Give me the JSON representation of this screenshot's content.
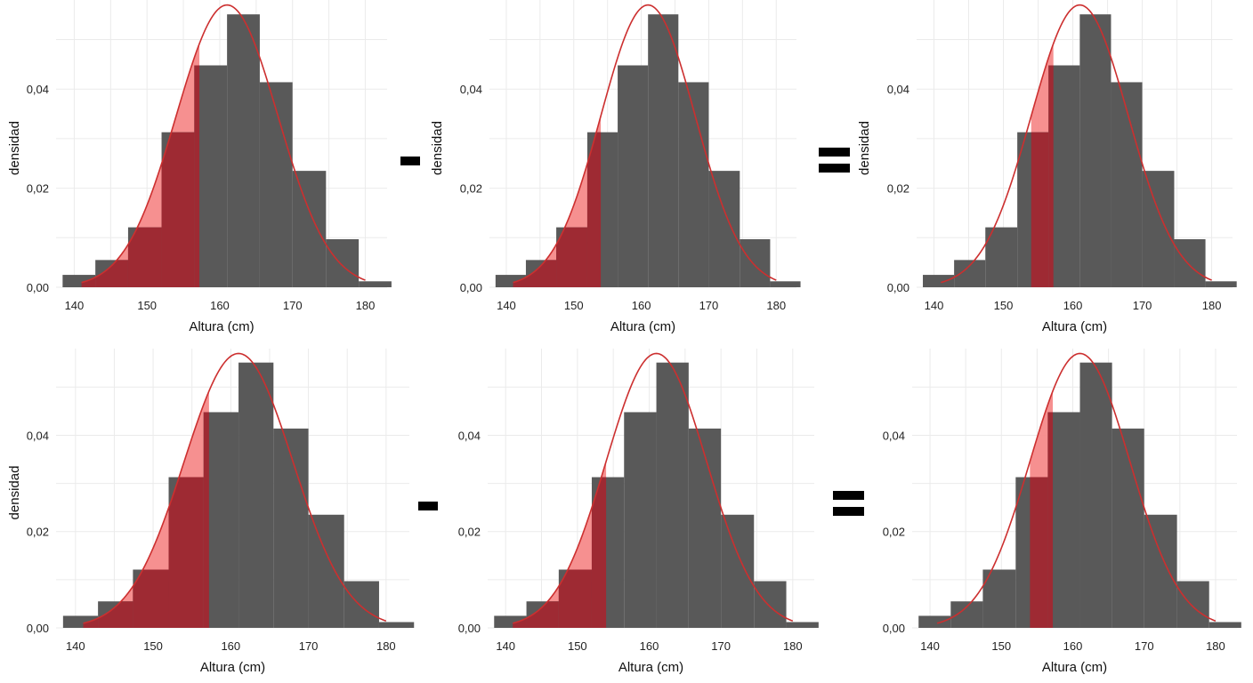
{
  "figure": {
    "operators": [
      "-",
      "=",
      "-",
      "="
    ]
  },
  "chart_data": [
    {
      "type": "bar",
      "title": "",
      "xlabel": "Altura (cm)",
      "ylabel": "densidad",
      "xlim": [
        137.5,
        183
      ],
      "ylim": [
        0,
        0.058
      ],
      "xticks": [
        140,
        150,
        160,
        170,
        180
      ],
      "xtick_labels": [
        "140",
        "150",
        "160",
        "170",
        "180"
      ],
      "yticks": [
        0,
        0.02,
        0.04
      ],
      "ytick_labels": [
        "0,00",
        "0,02",
        "0,04"
      ],
      "grid": true,
      "bins": [
        [
          138.4,
          142.9
        ],
        [
          142.9,
          147.4
        ],
        [
          147.4,
          152.0
        ],
        [
          152.0,
          156.5
        ],
        [
          156.5,
          161.0
        ],
        [
          161.0,
          165.5
        ],
        [
          165.5,
          170.0
        ],
        [
          170.0,
          174.6
        ],
        [
          174.6,
          179.1
        ],
        [
          179.1,
          183.6
        ]
      ],
      "values": [
        0.0025,
        0.0055,
        0.0121,
        0.0313,
        0.0448,
        0.0551,
        0.0414,
        0.0235,
        0.0097,
        0.0012
      ],
      "curve": {
        "type": "normal",
        "mean": 161,
        "sd": 7,
        "range": [
          141,
          180
        ],
        "color": "#cc2f2f"
      },
      "shaded_region": {
        "from": 141,
        "to": 157.2
      }
    },
    {
      "type": "bar",
      "title": "",
      "xlabel": "Altura (cm)",
      "ylabel": "densidad",
      "xlim": [
        137.5,
        183
      ],
      "ylim": [
        0,
        0.058
      ],
      "xticks": [
        140,
        150,
        160,
        170,
        180
      ],
      "xtick_labels": [
        "140",
        "150",
        "160",
        "170",
        "180"
      ],
      "yticks": [
        0,
        0.02,
        0.04
      ],
      "ytick_labels": [
        "0,00",
        "0,02",
        "0,04"
      ],
      "grid": true,
      "bins": [
        [
          138.4,
          142.9
        ],
        [
          142.9,
          147.4
        ],
        [
          147.4,
          152.0
        ],
        [
          152.0,
          156.5
        ],
        [
          156.5,
          161.0
        ],
        [
          161.0,
          165.5
        ],
        [
          165.5,
          170.0
        ],
        [
          170.0,
          174.6
        ],
        [
          174.6,
          179.1
        ],
        [
          179.1,
          183.6
        ]
      ],
      "values": [
        0.0025,
        0.0055,
        0.0121,
        0.0313,
        0.0448,
        0.0551,
        0.0414,
        0.0235,
        0.0097,
        0.0012
      ],
      "curve": {
        "type": "normal",
        "mean": 161,
        "sd": 7,
        "range": [
          141,
          180
        ],
        "color": "#cc2f2f"
      },
      "shaded_region": {
        "from": 141,
        "to": 154
      }
    },
    {
      "type": "bar",
      "title": "",
      "xlabel": "Altura (cm)",
      "ylabel": "densidad",
      "xlim": [
        137.5,
        183
      ],
      "ylim": [
        0,
        0.058
      ],
      "xticks": [
        140,
        150,
        160,
        170,
        180
      ],
      "xtick_labels": [
        "140",
        "150",
        "160",
        "170",
        "180"
      ],
      "yticks": [
        0,
        0.02,
        0.04
      ],
      "ytick_labels": [
        "0,00",
        "0,02",
        "0,04"
      ],
      "grid": true,
      "bins": [
        [
          138.4,
          142.9
        ],
        [
          142.9,
          147.4
        ],
        [
          147.4,
          152.0
        ],
        [
          152.0,
          156.5
        ],
        [
          156.5,
          161.0
        ],
        [
          161.0,
          165.5
        ],
        [
          165.5,
          170.0
        ],
        [
          170.0,
          174.6
        ],
        [
          174.6,
          179.1
        ],
        [
          179.1,
          183.6
        ]
      ],
      "values": [
        0.0025,
        0.0055,
        0.0121,
        0.0313,
        0.0448,
        0.0551,
        0.0414,
        0.0235,
        0.0097,
        0.0012
      ],
      "curve": {
        "type": "normal",
        "mean": 161,
        "sd": 7,
        "range": [
          141,
          180
        ],
        "color": "#cc2f2f"
      },
      "shaded_region": {
        "from": 154,
        "to": 157.2
      }
    },
    {
      "type": "bar",
      "title": "",
      "xlabel": "Altura (cm)",
      "ylabel": "densidad",
      "xlim": [
        137.5,
        183
      ],
      "ylim": [
        0,
        0.058
      ],
      "xticks": [
        140,
        150,
        160,
        170,
        180
      ],
      "xtick_labels": [
        "140",
        "150",
        "160",
        "170",
        "180"
      ],
      "yticks": [
        0,
        0.02,
        0.04
      ],
      "ytick_labels": [
        "0,00",
        "0,02",
        "0,04"
      ],
      "grid": true,
      "bins": [
        [
          138.4,
          142.9
        ],
        [
          142.9,
          147.4
        ],
        [
          147.4,
          152.0
        ],
        [
          152.0,
          156.5
        ],
        [
          156.5,
          161.0
        ],
        [
          161.0,
          165.5
        ],
        [
          165.5,
          170.0
        ],
        [
          170.0,
          174.6
        ],
        [
          174.6,
          179.1
        ],
        [
          179.1,
          183.6
        ]
      ],
      "values": [
        0.0025,
        0.0055,
        0.0121,
        0.0313,
        0.0448,
        0.0551,
        0.0414,
        0.0235,
        0.0097,
        0.0012
      ],
      "curve": {
        "type": "normal",
        "mean": 161,
        "sd": 7,
        "range": [
          141,
          180
        ],
        "color": "#cc2f2f"
      },
      "shaded_region": {
        "from": 141,
        "to": 157.2
      }
    },
    {
      "type": "bar",
      "title": "",
      "xlabel": "Altura (cm)",
      "ylabel": "",
      "xlim": [
        137.5,
        183
      ],
      "ylim": [
        0,
        0.058
      ],
      "xticks": [
        140,
        150,
        160,
        170,
        180
      ],
      "xtick_labels": [
        "140",
        "150",
        "160",
        "170",
        "180"
      ],
      "yticks": [
        0,
        0.02,
        0.04
      ],
      "ytick_labels": [
        "0,00",
        "0,02",
        "0,04"
      ],
      "grid": true,
      "bins": [
        [
          138.4,
          142.9
        ],
        [
          142.9,
          147.4
        ],
        [
          147.4,
          152.0
        ],
        [
          152.0,
          156.5
        ],
        [
          156.5,
          161.0
        ],
        [
          161.0,
          165.5
        ],
        [
          165.5,
          170.0
        ],
        [
          170.0,
          174.6
        ],
        [
          174.6,
          179.1
        ],
        [
          179.1,
          183.6
        ]
      ],
      "values": [
        0.0025,
        0.0055,
        0.0121,
        0.0313,
        0.0448,
        0.0551,
        0.0414,
        0.0235,
        0.0097,
        0.0012
      ],
      "curve": {
        "type": "normal",
        "mean": 161,
        "sd": 7,
        "range": [
          141,
          180
        ],
        "color": "#cc2f2f"
      },
      "shaded_region": {
        "from": 141,
        "to": 154
      }
    },
    {
      "type": "bar",
      "title": "",
      "xlabel": "Altura (cm)",
      "ylabel": "",
      "xlim": [
        137.5,
        183
      ],
      "ylim": [
        0,
        0.058
      ],
      "xticks": [
        140,
        150,
        160,
        170,
        180
      ],
      "xtick_labels": [
        "140",
        "150",
        "160",
        "170",
        "180"
      ],
      "yticks": [
        0,
        0.02,
        0.04
      ],
      "ytick_labels": [
        "0,00",
        "0,02",
        "0,04"
      ],
      "grid": true,
      "bins": [
        [
          138.4,
          142.9
        ],
        [
          142.9,
          147.4
        ],
        [
          147.4,
          152.0
        ],
        [
          152.0,
          156.5
        ],
        [
          156.5,
          161.0
        ],
        [
          161.0,
          165.5
        ],
        [
          165.5,
          170.0
        ],
        [
          170.0,
          174.6
        ],
        [
          174.6,
          179.1
        ],
        [
          179.1,
          183.6
        ]
      ],
      "values": [
        0.0025,
        0.0055,
        0.0121,
        0.0313,
        0.0448,
        0.0551,
        0.0414,
        0.0235,
        0.0097,
        0.0012
      ],
      "curve": {
        "type": "normal",
        "mean": 161,
        "sd": 7,
        "range": [
          141,
          180
        ],
        "color": "#cc2f2f"
      },
      "shaded_region": {
        "from": 154,
        "to": 157.2
      }
    }
  ]
}
